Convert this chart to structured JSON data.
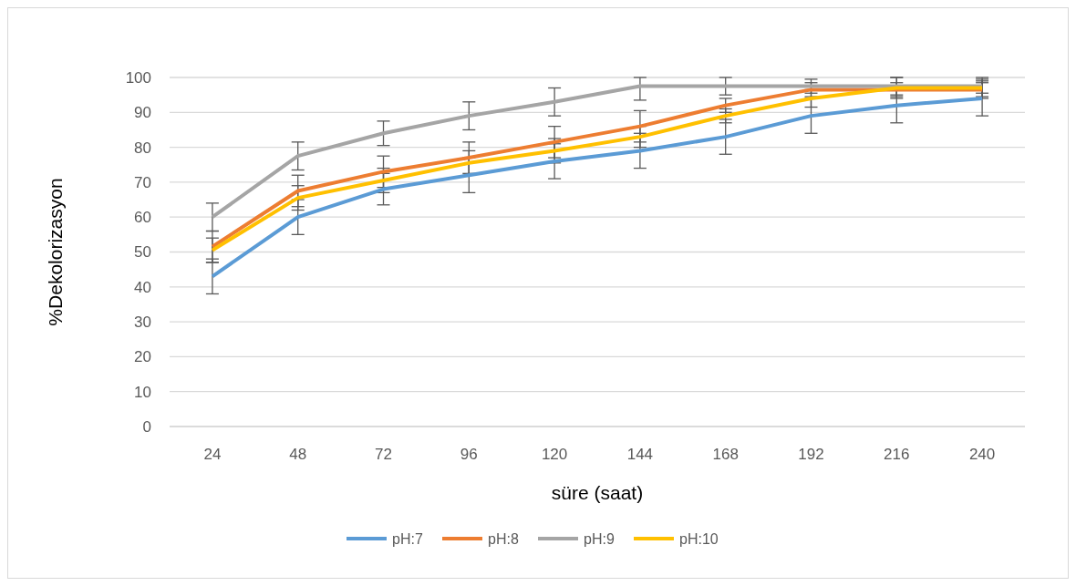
{
  "chart_data": {
    "type": "line",
    "xlabel": "süre (saat)",
    "ylabel": "%Dekolorizasyon",
    "categories": [
      "24",
      "48",
      "72",
      "96",
      "120",
      "144",
      "168",
      "192",
      "216",
      "240"
    ],
    "ylim": [
      0,
      100
    ],
    "yticks": [
      0,
      10,
      20,
      30,
      40,
      50,
      60,
      70,
      80,
      90,
      100
    ],
    "grid": "y",
    "legend": "bottom",
    "marker": "none",
    "line_style": "solid",
    "series": [
      {
        "name": "pH:7",
        "color": "#5b9bd5",
        "values": [
          43,
          60,
          68,
          72,
          76,
          79,
          83,
          89,
          92,
          94
        ],
        "errors": [
          5,
          5,
          4.5,
          5,
          5,
          5,
          5,
          5,
          5,
          5
        ]
      },
      {
        "name": "pH:8",
        "color": "#ed7d31",
        "values": [
          51.5,
          67.5,
          73,
          77,
          81.5,
          86,
          92,
          96.5,
          96.5,
          96.5
        ],
        "errors": [
          4.5,
          4.5,
          4.5,
          4.5,
          4.5,
          4.5,
          2,
          2,
          2,
          2
        ]
      },
      {
        "name": "pH:9",
        "color": "#a5a5a5",
        "values": [
          60,
          77.5,
          84,
          89,
          93,
          97.5,
          97.5,
          97.5,
          97.5,
          97.5
        ],
        "errors": [
          4,
          4,
          3.5,
          4,
          4,
          [
            93.5,
            100
          ],
          2.5,
          2,
          2.5,
          2
        ]
      },
      {
        "name": "pH:10",
        "color": "#ffc000",
        "values": [
          50.5,
          65.5,
          70.5,
          75.5,
          79,
          83,
          89,
          94,
          97,
          97
        ],
        "errors": [
          3.5,
          3.5,
          3.5,
          3.5,
          3.5,
          3,
          2,
          2.5,
          3,
          3
        ]
      }
    ]
  }
}
